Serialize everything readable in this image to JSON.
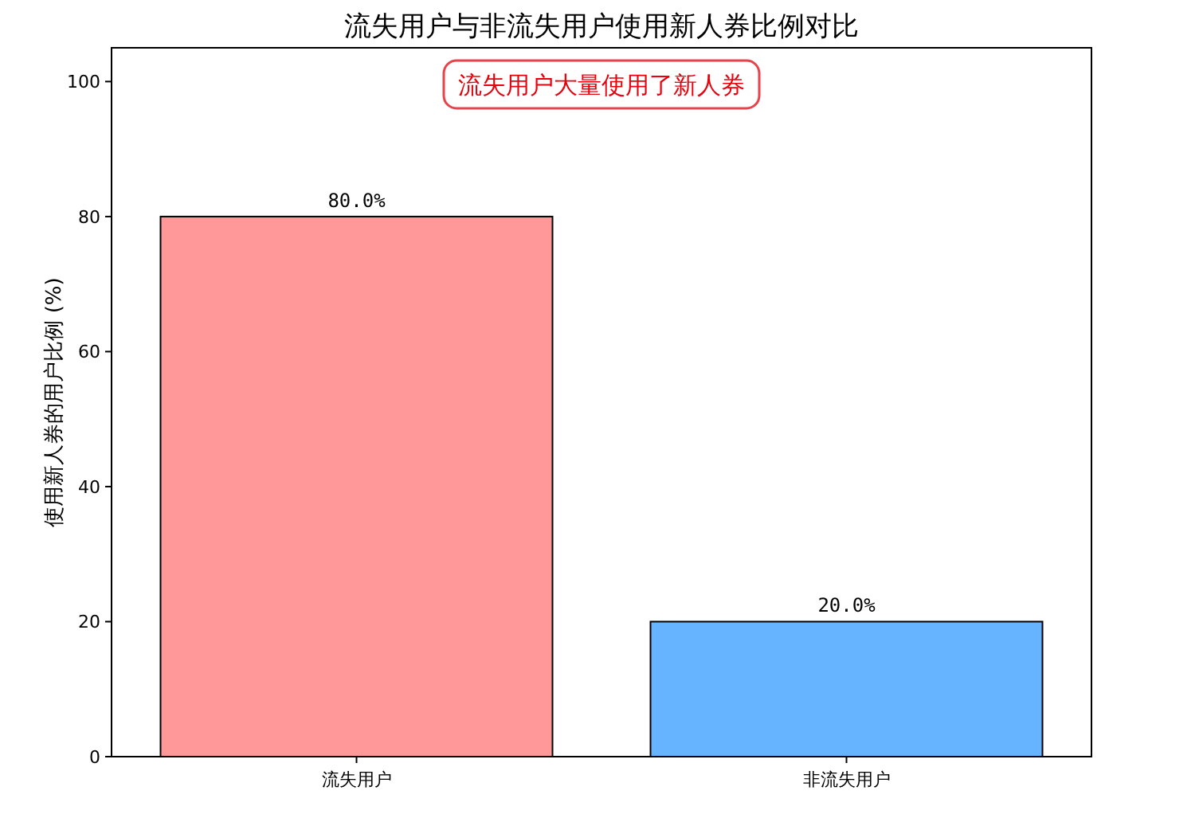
{
  "chart_data": {
    "type": "bar",
    "title": "流失用户与非流失用户使用新人券比例对比",
    "ylabel": "使用新人券的用户比例 (%)",
    "categories": [
      "流失用户",
      "非流失用户"
    ],
    "values": [
      80,
      20
    ],
    "colors": [
      "#ff9999",
      "#66b3ff"
    ],
    "value_labels": [
      "80.0%",
      "20.0%"
    ],
    "annotations": [
      "流失用户大量使用了新人券"
    ],
    "ylim": [
      0,
      105
    ],
    "yticks": [
      0,
      20,
      40,
      60,
      80,
      100
    ],
    "grid": false
  }
}
